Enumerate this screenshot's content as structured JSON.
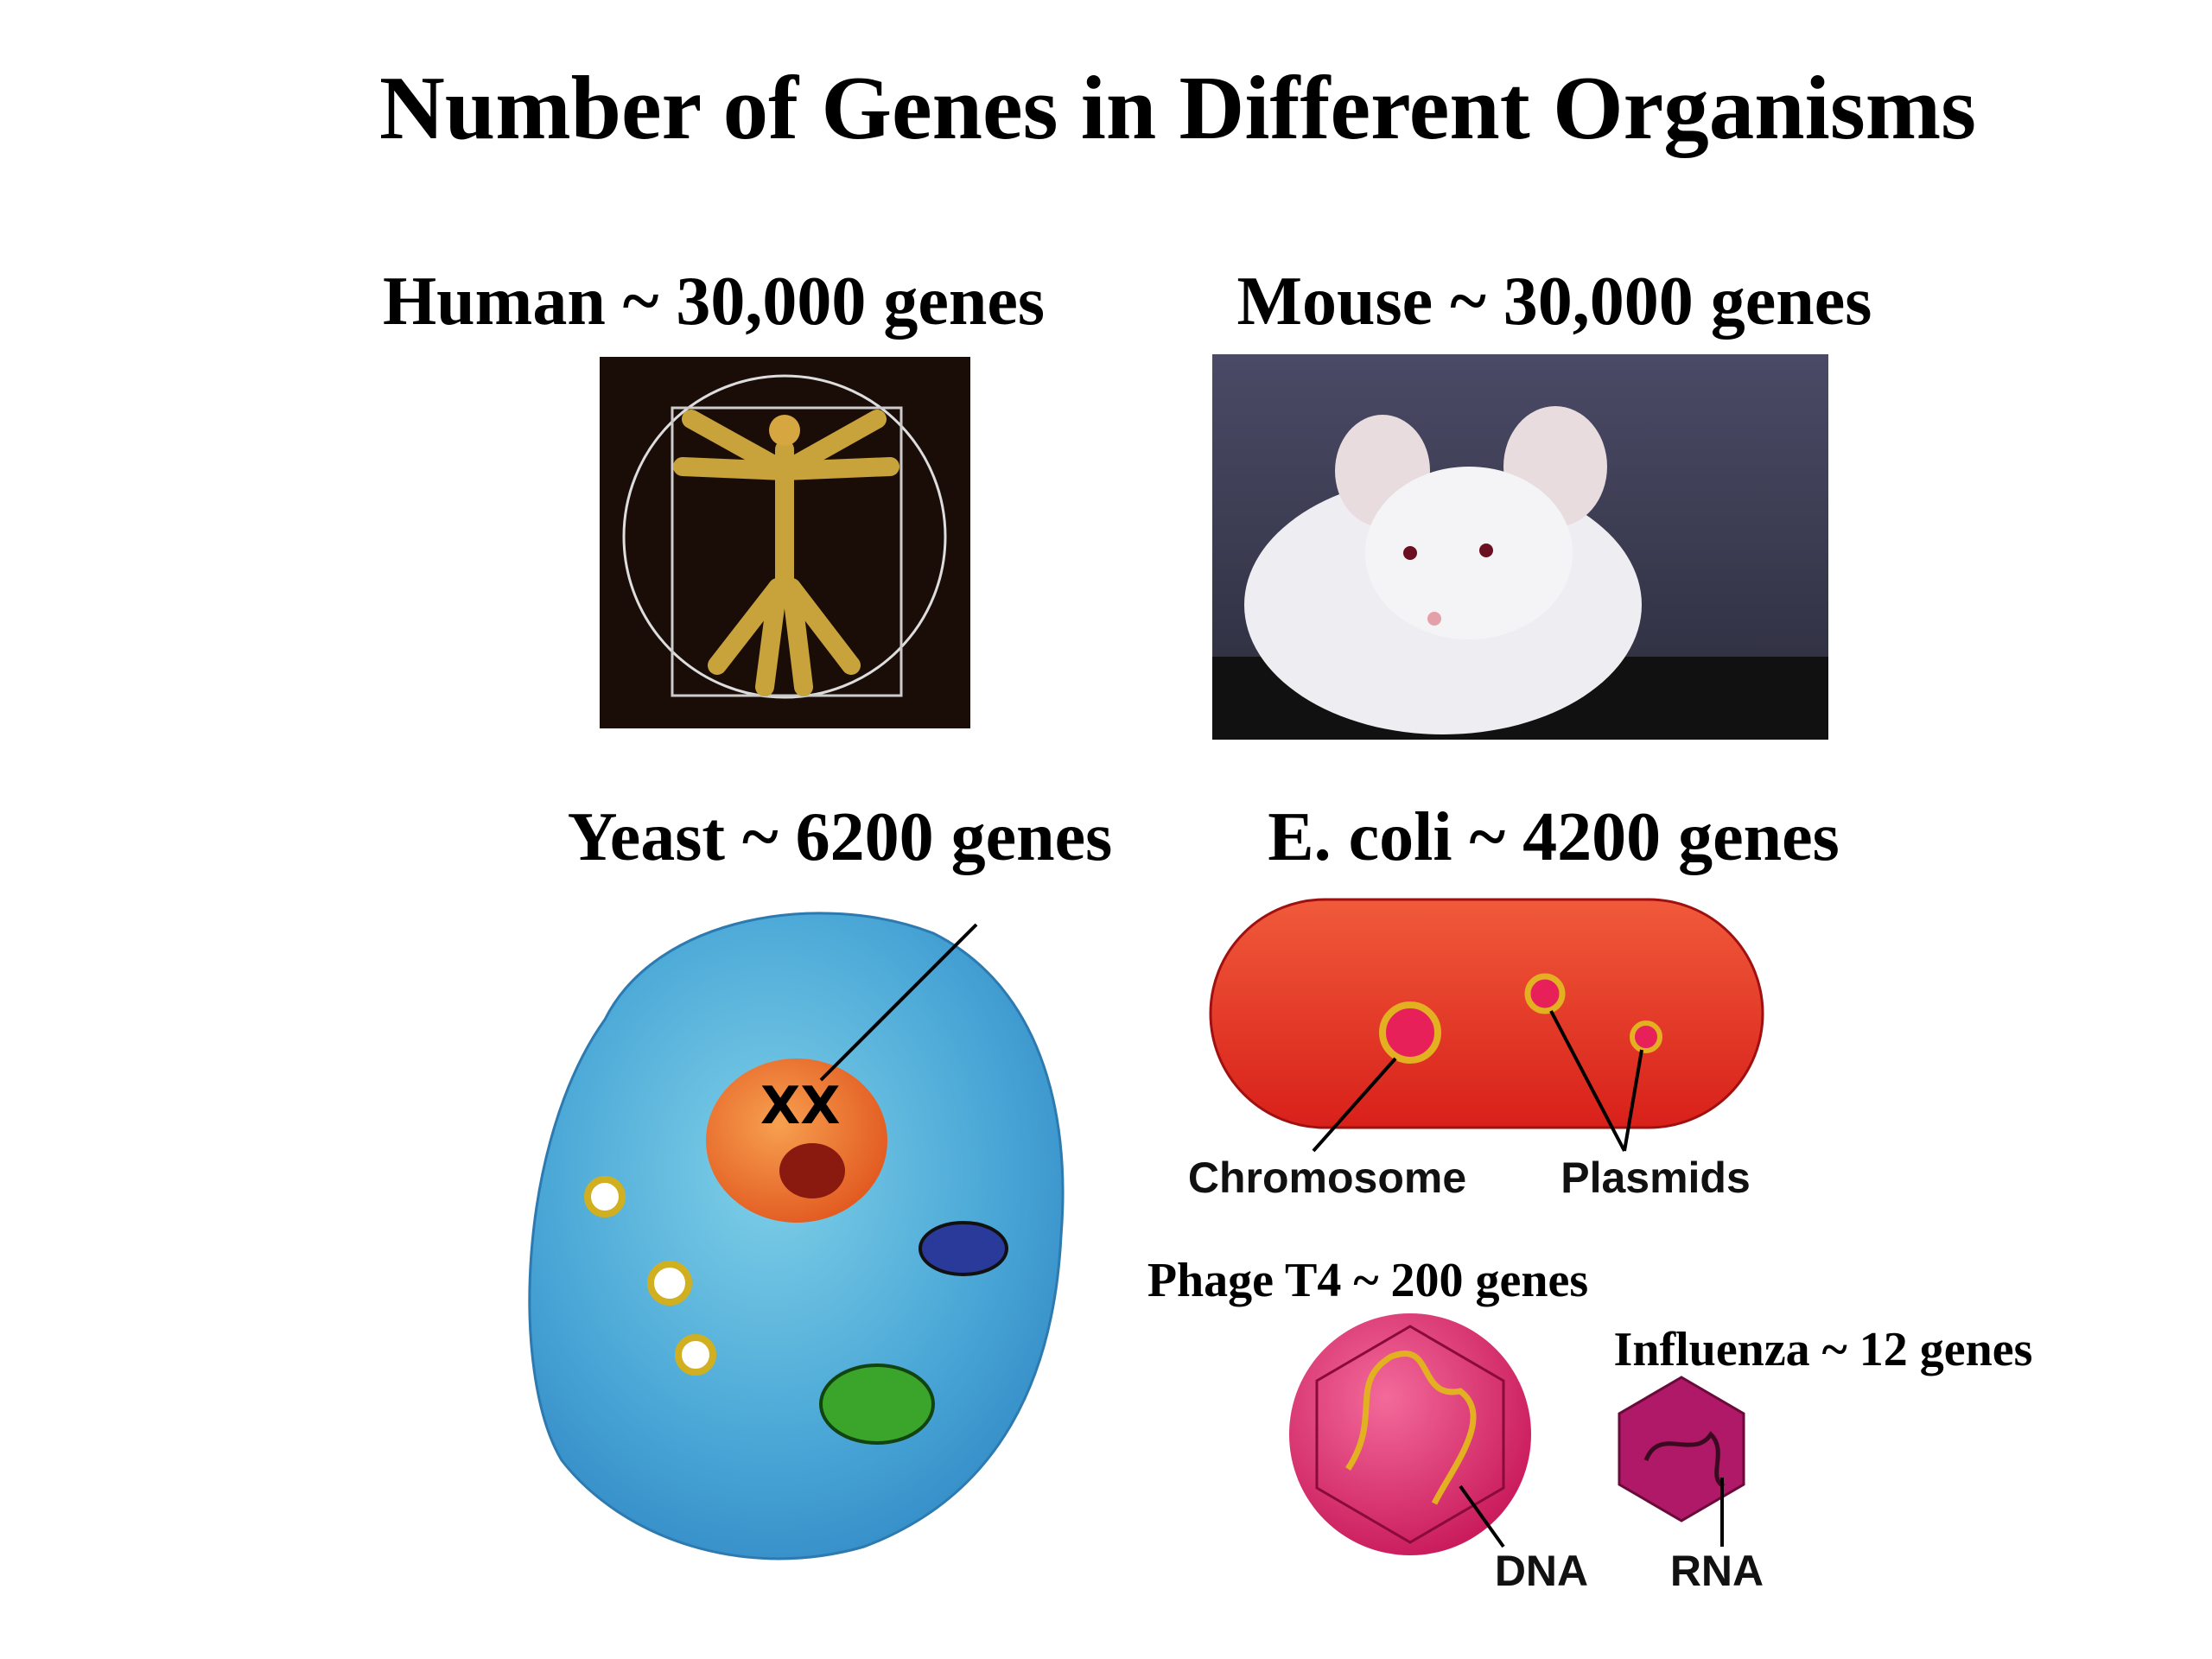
{
  "header": {
    "title": "Number of Genes in Different Organisms"
  },
  "organisms": [
    {
      "label": "Human ~ 30,000 genes"
    },
    {
      "label": "Mouse ~  30,000 genes"
    },
    {
      "label": "Yeast ~ 6200 genes"
    },
    {
      "label": "E. coli ~ 4200 genes"
    },
    {
      "label": "Phage T4 ~ 200 genes"
    },
    {
      "label": "Influenza ~ 12 genes"
    }
  ],
  "diagram_labels": {
    "chromosome": "Chromosome",
    "plasmids": "Plasmids",
    "dna": "DNA",
    "rna": "RNA"
  }
}
